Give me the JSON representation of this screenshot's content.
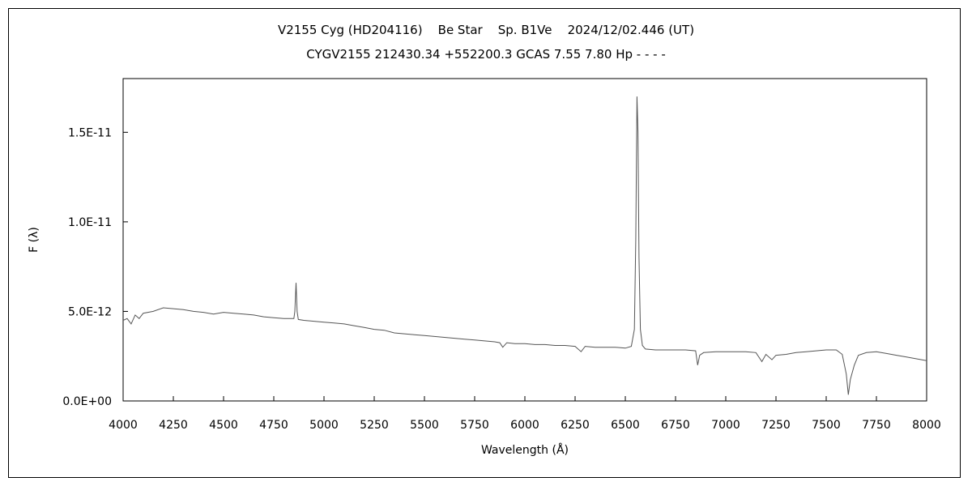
{
  "chart_data": {
    "type": "line",
    "title": "V2155 Cyg (HD204116)    Be Star    Sp. B1Ve    2024/12/02.446 (UT)",
    "subtitle": "CYGV2155 212430.34 +552200.3 GCAS 7.55 7.80 Hp - - - -",
    "xlabel": "Wavelength (Å)",
    "ylabel": "F (λ)",
    "xlim": [
      4000,
      8000
    ],
    "ylim": [
      0,
      1.8e-11
    ],
    "xticks": [
      4000,
      4250,
      4500,
      4750,
      5000,
      5250,
      5500,
      5750,
      6000,
      6250,
      6500,
      6750,
      7000,
      7250,
      7500,
      7750,
      8000
    ],
    "xtick_labels": [
      "4000",
      "4250",
      "4500",
      "4750",
      "5000",
      "5250",
      "5500",
      "5750",
      "6000",
      "6250",
      "6500",
      "6750",
      "7000",
      "7250",
      "7500",
      "7750",
      "8000"
    ],
    "yticks": [
      0,
      5e-12,
      1e-11,
      1.5e-11
    ],
    "ytick_labels": [
      "0.0E+00",
      "5.0E-12",
      "1.0E-11",
      "1.5E-11"
    ],
    "grid": false,
    "legend": "none",
    "line_color": "#555555",
    "series": [
      {
        "x": [
          4000,
          4020,
          4040,
          4060,
          4080,
          4100,
          4150,
          4200,
          4250,
          4300,
          4350,
          4400,
          4450,
          4500,
          4550,
          4600,
          4650,
          4700,
          4750,
          4800,
          4850,
          4855,
          4861,
          4866,
          4872,
          4900,
          4950,
          5000,
          5050,
          5100,
          5150,
          5200,
          5250,
          5300,
          5350,
          5400,
          5450,
          5500,
          5550,
          5600,
          5650,
          5700,
          5750,
          5800,
          5850,
          5875,
          5890,
          5910,
          5950,
          6000,
          6050,
          6100,
          6150,
          6200,
          6250,
          6280,
          6300,
          6350,
          6400,
          6450,
          6500,
          6530,
          6545,
          6552,
          6558,
          6563,
          6568,
          6575,
          6585,
          6600,
          6650,
          6700,
          6750,
          6800,
          6850,
          6860,
          6870,
          6890,
          6950,
          7000,
          7050,
          7100,
          7150,
          7180,
          7200,
          7230,
          7250,
          7300,
          7350,
          7400,
          7450,
          7500,
          7550,
          7580,
          7600,
          7610,
          7620,
          7640,
          7660,
          7700,
          7750,
          7800,
          7850,
          7900,
          7950,
          8000
        ],
        "y": [
          4.5e-12,
          4.6e-12,
          4.3e-12,
          4.8e-12,
          4.6e-12,
          4.9e-12,
          5e-12,
          5.2e-12,
          5.15e-12,
          5.1e-12,
          5e-12,
          4.95e-12,
          4.85e-12,
          4.95e-12,
          4.9e-12,
          4.85e-12,
          4.8e-12,
          4.7e-12,
          4.65e-12,
          4.6e-12,
          4.6e-12,
          5e-12,
          6.6e-12,
          5e-12,
          4.55e-12,
          4.5e-12,
          4.45e-12,
          4.4e-12,
          4.35e-12,
          4.3e-12,
          4.2e-12,
          4.1e-12,
          4e-12,
          3.95e-12,
          3.8e-12,
          3.75e-12,
          3.7e-12,
          3.65e-12,
          3.6e-12,
          3.55e-12,
          3.5e-12,
          3.45e-12,
          3.4e-12,
          3.35e-12,
          3.3e-12,
          3.25e-12,
          3e-12,
          3.25e-12,
          3.2e-12,
          3.2e-12,
          3.15e-12,
          3.15e-12,
          3.1e-12,
          3.1e-12,
          3.05e-12,
          2.75e-12,
          3.05e-12,
          3e-12,
          3e-12,
          3e-12,
          2.95e-12,
          3.05e-12,
          4e-12,
          9e-12,
          1.7e-11,
          1.5e-11,
          8e-12,
          4e-12,
          3.1e-12,
          2.9e-12,
          2.85e-12,
          2.85e-12,
          2.85e-12,
          2.85e-12,
          2.8e-12,
          2e-12,
          2.55e-12,
          2.7e-12,
          2.75e-12,
          2.75e-12,
          2.75e-12,
          2.75e-12,
          2.7e-12,
          2.2e-12,
          2.6e-12,
          2.3e-12,
          2.55e-12,
          2.6e-12,
          2.7e-12,
          2.75e-12,
          2.8e-12,
          2.85e-12,
          2.85e-12,
          2.6e-12,
          1.5e-12,
          3.5e-13,
          1.2e-12,
          2e-12,
          2.55e-12,
          2.7e-12,
          2.75e-12,
          2.65e-12,
          2.55e-12,
          2.45e-12,
          2.35e-12,
          2.25e-12
        ]
      }
    ]
  }
}
